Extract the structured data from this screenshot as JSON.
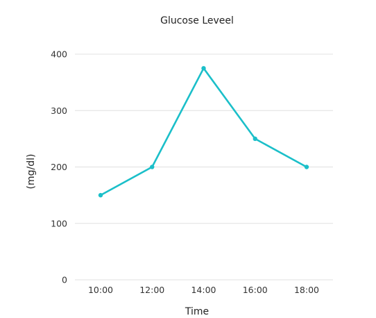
{
  "chart_data": {
    "type": "line",
    "title": "Glucose Leveel",
    "xlabel": "Time",
    "ylabel": "(mg/dl)",
    "categories": [
      "10:00",
      "12:00",
      "14:00",
      "16:00",
      "18:00"
    ],
    "series": [
      {
        "values": [
          150,
          200,
          375,
          250,
          200
        ]
      }
    ],
    "ylim": [
      0,
      400
    ],
    "yticks": [
      0,
      100,
      200,
      300,
      400
    ],
    "grid": true,
    "legend": "none",
    "colors": {
      "series": "#1bbfc9",
      "grid": "#e0e0e0"
    }
  }
}
